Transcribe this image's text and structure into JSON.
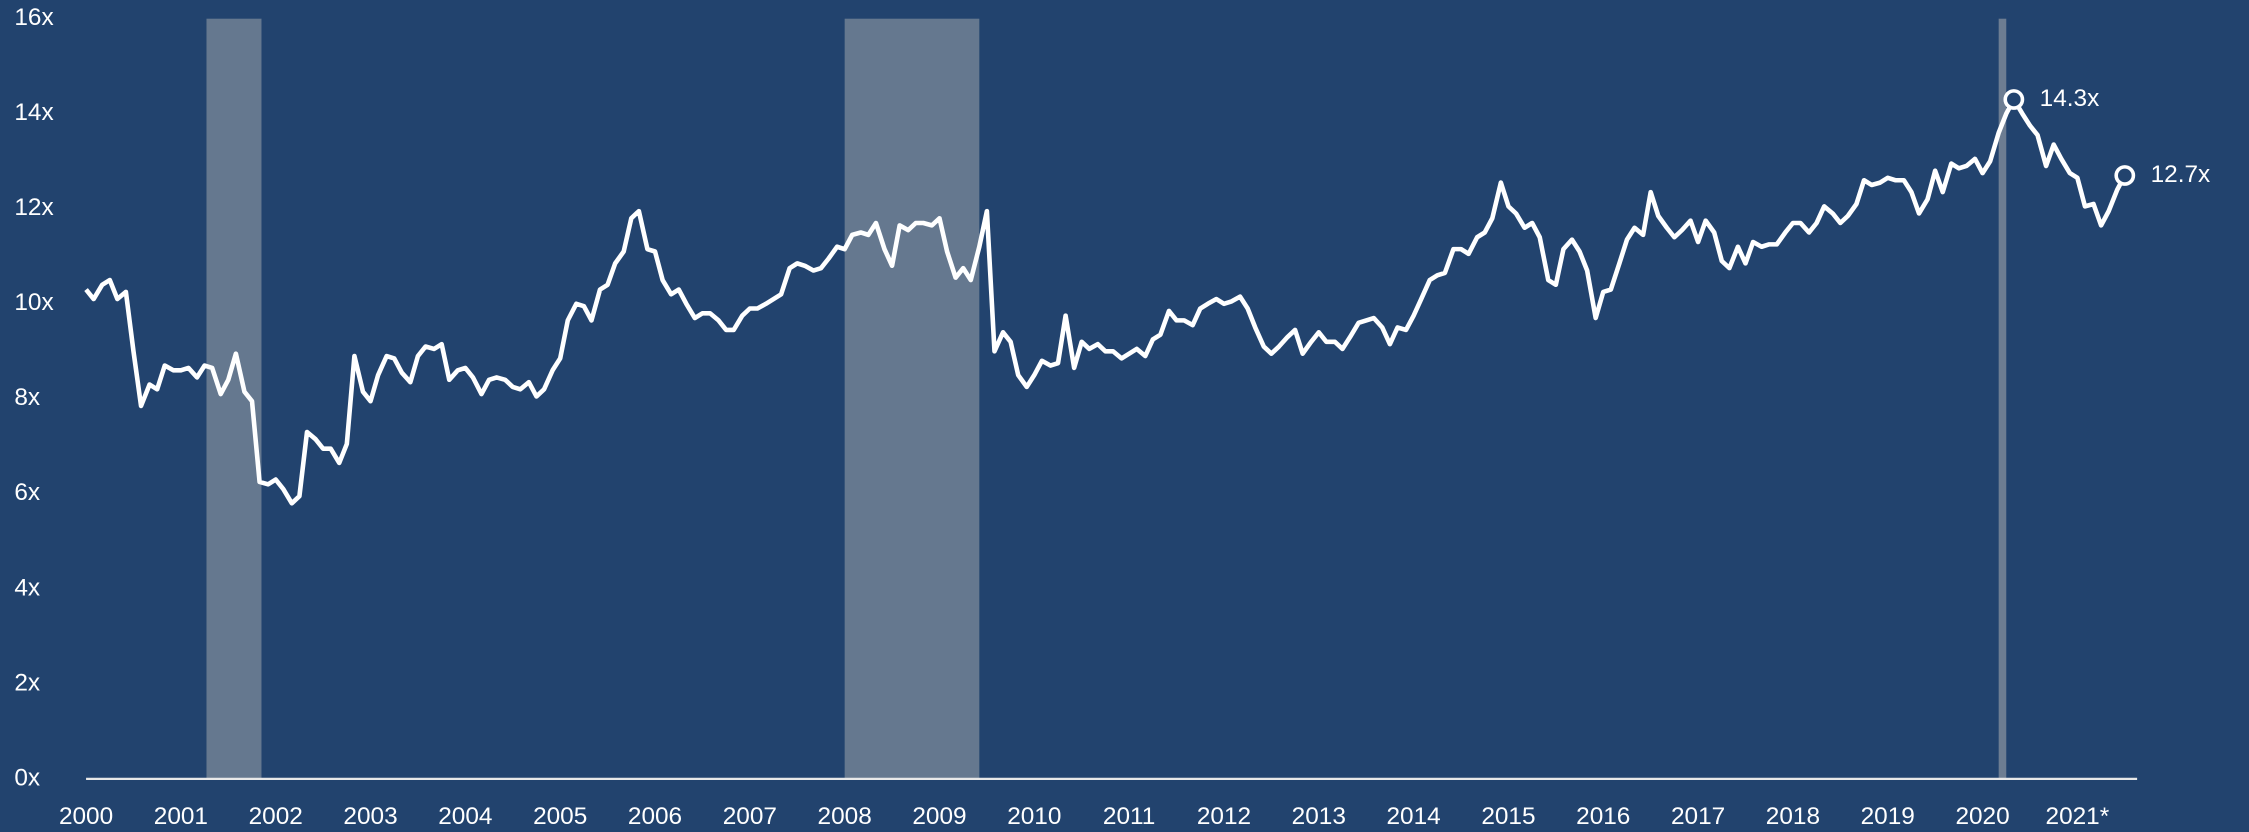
{
  "chart_data": {
    "type": "line",
    "xlim": [
      2000,
      2021.63
    ],
    "ylim": [
      0,
      16
    ],
    "yticks": [
      {
        "value": 0,
        "label": "0x"
      },
      {
        "value": 2,
        "label": "2x"
      },
      {
        "value": 4,
        "label": "4x"
      },
      {
        "value": 6,
        "label": "6x"
      },
      {
        "value": 8,
        "label": "8x"
      },
      {
        "value": 10,
        "label": "10x"
      },
      {
        "value": 12,
        "label": "12x"
      },
      {
        "value": 14,
        "label": "14x"
      },
      {
        "value": 16,
        "label": "16x"
      }
    ],
    "xticks": [
      2000,
      2001,
      2002,
      2003,
      2004,
      2005,
      2006,
      2007,
      2008,
      2009,
      2010,
      2011,
      2012,
      2013,
      2014,
      2015,
      2016,
      2017,
      2018,
      2019,
      2020,
      {
        "value": 2021,
        "label": "2021*"
      }
    ],
    "shaded_ranges": [
      [
        2001.27,
        2001.85
      ],
      [
        2008.0,
        2009.42
      ],
      [
        2020.17,
        2020.25
      ]
    ],
    "shade_colors": [
      "#65788f",
      "#65788f",
      "#6d7d92"
    ],
    "x": [
      2000,
      2000.08,
      2000.17,
      2000.25,
      2000.33,
      2000.42,
      2000.5,
      2000.58,
      2000.67,
      2000.75,
      2000.83,
      2000.92,
      2001,
      2001.08,
      2001.17,
      2001.25,
      2001.33,
      2001.42,
      2001.5,
      2001.58,
      2001.67,
      2001.75,
      2001.83,
      2001.92,
      2002,
      2002.08,
      2002.17,
      2002.25,
      2002.33,
      2002.42,
      2002.5,
      2002.58,
      2002.67,
      2002.75,
      2002.83,
      2002.92,
      2003,
      2003.08,
      2003.17,
      2003.25,
      2003.33,
      2003.42,
      2003.5,
      2003.58,
      2003.67,
      2003.75,
      2003.83,
      2003.92,
      2004,
      2004.08,
      2004.17,
      2004.25,
      2004.33,
      2004.42,
      2004.5,
      2004.58,
      2004.67,
      2004.75,
      2004.83,
      2004.92,
      2005,
      2005.08,
      2005.17,
      2005.25,
      2005.33,
      2005.42,
      2005.5,
      2005.58,
      2005.67,
      2005.75,
      2005.83,
      2005.92,
      2006,
      2006.08,
      2006.17,
      2006.25,
      2006.33,
      2006.42,
      2006.5,
      2006.58,
      2006.67,
      2006.75,
      2006.83,
      2006.92,
      2007,
      2007.08,
      2007.17,
      2007.25,
      2007.33,
      2007.42,
      2007.5,
      2007.58,
      2007.67,
      2007.75,
      2007.83,
      2007.92,
      2008,
      2008.08,
      2008.17,
      2008.25,
      2008.33,
      2008.42,
      2008.5,
      2008.58,
      2008.67,
      2008.75,
      2008.83,
      2008.92,
      2009,
      2009.08,
      2009.17,
      2009.25,
      2009.33,
      2009.42,
      2009.5,
      2009.58,
      2009.67,
      2009.75,
      2009.83,
      2009.92,
      2010,
      2010.08,
      2010.17,
      2010.25,
      2010.33,
      2010.42,
      2010.5,
      2010.58,
      2010.67,
      2010.75,
      2010.83,
      2010.92,
      2011,
      2011.08,
      2011.17,
      2011.25,
      2011.33,
      2011.42,
      2011.5,
      2011.58,
      2011.67,
      2011.75,
      2011.83,
      2011.92,
      2012,
      2012.08,
      2012.17,
      2012.25,
      2012.33,
      2012.42,
      2012.5,
      2012.58,
      2012.67,
      2012.75,
      2012.83,
      2012.92,
      2013,
      2013.08,
      2013.17,
      2013.25,
      2013.33,
      2013.42,
      2013.5,
      2013.58,
      2013.67,
      2013.75,
      2013.83,
      2013.92,
      2014,
      2014.08,
      2014.17,
      2014.25,
      2014.33,
      2014.42,
      2014.5,
      2014.58,
      2014.67,
      2014.75,
      2014.83,
      2014.92,
      2015,
      2015.08,
      2015.17,
      2015.25,
      2015.33,
      2015.42,
      2015.5,
      2015.58,
      2015.67,
      2015.75,
      2015.83,
      2015.92,
      2016,
      2016.08,
      2016.17,
      2016.25,
      2016.33,
      2016.42,
      2016.5,
      2016.58,
      2016.67,
      2016.75,
      2016.83,
      2016.92,
      2017,
      2017.08,
      2017.17,
      2017.25,
      2017.33,
      2017.42,
      2017.5,
      2017.58,
      2017.67,
      2017.75,
      2017.83,
      2017.92,
      2018,
      2018.08,
      2018.17,
      2018.25,
      2018.33,
      2018.42,
      2018.5,
      2018.58,
      2018.67,
      2018.75,
      2018.83,
      2018.92,
      2019,
      2019.08,
      2019.17,
      2019.25,
      2019.33,
      2019.42,
      2019.5,
      2019.58,
      2019.67,
      2019.75,
      2019.83,
      2019.92,
      2020,
      2020.08,
      2020.17,
      2020.25,
      2020.33,
      2020.42,
      2020.5,
      2020.58,
      2020.67,
      2020.75,
      2020.83,
      2020.92,
      2021,
      2021.08,
      2021.17,
      2021.25,
      2021.33,
      2021.42,
      2021.5
    ],
    "series": [
      {
        "color": "#ffffff",
        "values": [
          10.3,
          10.1,
          10.4,
          10.5,
          10.1,
          10.25,
          9.0,
          7.85,
          8.3,
          8.2,
          8.7,
          8.6,
          8.6,
          8.65,
          8.45,
          8.7,
          8.65,
          8.1,
          8.4,
          8.95,
          8.15,
          7.95,
          6.25,
          6.2,
          6.3,
          6.1,
          5.8,
          5.95,
          7.3,
          7.15,
          6.95,
          6.95,
          6.65,
          7.05,
          8.9,
          8.15,
          7.95,
          8.5,
          8.9,
          8.85,
          8.55,
          8.35,
          8.9,
          9.1,
          9.05,
          9.15,
          8.4,
          8.6,
          8.65,
          8.45,
          8.1,
          8.4,
          8.45,
          8.4,
          8.25,
          8.2,
          8.35,
          8.05,
          8.2,
          8.6,
          8.85,
          9.65,
          10.0,
          9.95,
          9.65,
          10.3,
          10.4,
          10.85,
          11.1,
          11.8,
          11.95,
          11.15,
          11.1,
          10.5,
          10.2,
          10.3,
          10.0,
          9.7,
          9.8,
          9.8,
          9.65,
          9.45,
          9.45,
          9.75,
          9.9,
          9.9,
          10.0,
          10.1,
          10.2,
          10.75,
          10.85,
          10.8,
          10.7,
          10.75,
          10.95,
          11.2,
          11.15,
          11.45,
          11.5,
          11.45,
          11.7,
          11.15,
          10.8,
          11.65,
          11.55,
          11.7,
          11.7,
          11.65,
          11.8,
          11.1,
          10.55,
          10.75,
          10.5,
          11.2,
          11.95,
          9.0,
          9.4,
          9.2,
          8.5,
          8.25,
          8.5,
          8.8,
          8.7,
          8.75,
          9.75,
          8.65,
          9.2,
          9.05,
          9.15,
          9.0,
          9.0,
          8.85,
          8.95,
          9.05,
          8.9,
          9.25,
          9.35,
          9.85,
          9.65,
          9.65,
          9.55,
          9.9,
          10.0,
          10.1,
          10.0,
          10.05,
          10.15,
          9.9,
          9.5,
          9.1,
          8.95,
          9.1,
          9.3,
          9.45,
          8.95,
          9.2,
          9.4,
          9.2,
          9.2,
          9.05,
          9.3,
          9.6,
          9.65,
          9.7,
          9.5,
          9.15,
          9.5,
          9.45,
          9.75,
          10.1,
          10.5,
          10.6,
          10.65,
          11.15,
          11.15,
          11.05,
          11.4,
          11.5,
          11.8,
          12.55,
          12.05,
          11.9,
          11.6,
          11.7,
          11.4,
          10.5,
          10.4,
          11.15,
          11.35,
          11.1,
          10.7,
          9.7,
          10.25,
          10.3,
          10.85,
          11.35,
          11.6,
          11.45,
          12.35,
          11.85,
          11.6,
          11.4,
          11.55,
          11.75,
          11.3,
          11.75,
          11.5,
          10.9,
          10.75,
          11.2,
          10.85,
          11.3,
          11.2,
          11.25,
          11.25,
          11.5,
          11.7,
          11.7,
          11.5,
          11.7,
          12.05,
          11.9,
          11.7,
          11.85,
          12.1,
          12.6,
          12.5,
          12.55,
          12.65,
          12.6,
          12.6,
          12.35,
          11.9,
          12.2,
          12.8,
          12.35,
          12.95,
          12.85,
          12.9,
          13.05,
          12.75,
          13.0,
          13.6,
          14.0,
          14.3,
          14.0,
          13.75,
          13.55,
          12.9,
          13.35,
          13.05,
          12.75,
          12.65,
          12.05,
          12.1,
          11.65,
          11.95,
          12.4,
          12.7
        ]
      }
    ],
    "annotations": [
      {
        "x": 2020.33,
        "y": 14.3,
        "label": "14.3x"
      },
      {
        "x": 2021.5,
        "y": 12.7,
        "label": "12.7x"
      }
    ]
  }
}
